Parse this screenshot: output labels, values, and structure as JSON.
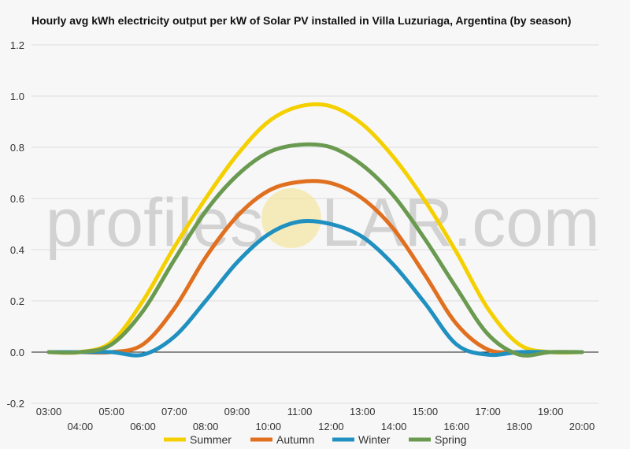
{
  "chart_data": {
    "type": "line",
    "title": "Hourly avg kWh electricity output per kW of Solar PV installed in Villa Luzuriaga, Argentina (by season)",
    "xlabel": "",
    "ylabel": "",
    "ylim": [
      -0.2,
      1.2
    ],
    "yticks": [
      "-0.2",
      "0.0",
      "0.2",
      "0.4",
      "0.6",
      "0.8",
      "1.0",
      "1.2"
    ],
    "x": [
      "03:00",
      "04:00",
      "05:00",
      "06:00",
      "07:00",
      "08:00",
      "09:00",
      "10:00",
      "11:00",
      "12:00",
      "13:00",
      "14:00",
      "15:00",
      "16:00",
      "17:00",
      "18:00",
      "19:00",
      "20:00"
    ],
    "grid": true,
    "legend_position": "bottom",
    "series": [
      {
        "name": "Summer",
        "color": "#f5d000",
        "values": [
          0.0,
          0.0,
          0.04,
          0.2,
          0.41,
          0.6,
          0.77,
          0.9,
          0.96,
          0.96,
          0.89,
          0.76,
          0.59,
          0.39,
          0.17,
          0.03,
          0.0,
          0.0
        ]
      },
      {
        "name": "Autumn",
        "color": "#e07020",
        "values": [
          0.0,
          0.0,
          0.0,
          0.03,
          0.17,
          0.37,
          0.53,
          0.63,
          0.665,
          0.66,
          0.6,
          0.48,
          0.3,
          0.11,
          0.01,
          0.0,
          0.0,
          0.0
        ]
      },
      {
        "name": "Winter",
        "color": "#2090c0",
        "values": [
          0.0,
          0.0,
          0.0,
          -0.01,
          0.06,
          0.2,
          0.35,
          0.46,
          0.51,
          0.5,
          0.45,
          0.34,
          0.19,
          0.03,
          -0.01,
          0.0,
          0.0,
          0.0
        ]
      },
      {
        "name": "Spring",
        "color": "#6a9a50",
        "values": [
          0.0,
          0.0,
          0.03,
          0.16,
          0.36,
          0.55,
          0.69,
          0.78,
          0.81,
          0.8,
          0.73,
          0.61,
          0.44,
          0.25,
          0.07,
          -0.01,
          0.0,
          0.0
        ]
      }
    ]
  },
  "watermark": {
    "left": "profiles",
    "right": "LAR.com"
  }
}
